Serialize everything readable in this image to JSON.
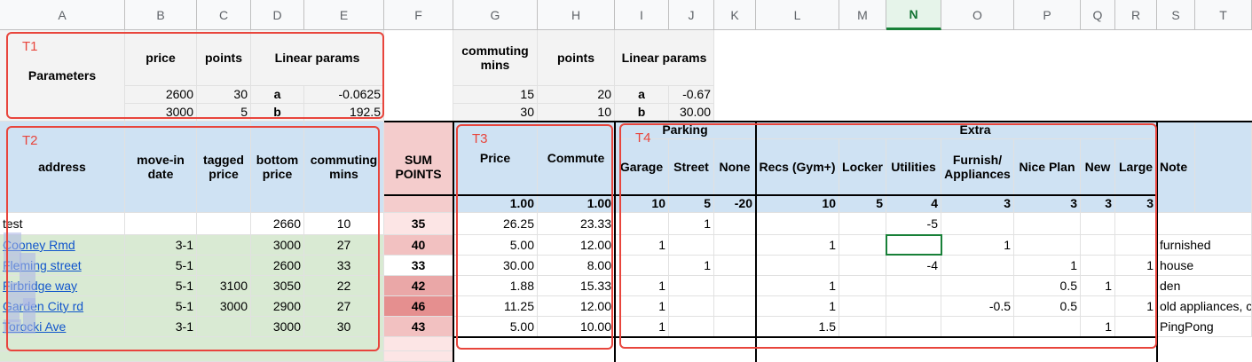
{
  "columns": [
    "A",
    "B",
    "C",
    "D",
    "E",
    "F",
    "G",
    "H",
    "I",
    "J",
    "K",
    "L",
    "M",
    "N",
    "O",
    "P",
    "Q",
    "R",
    "S",
    "T"
  ],
  "selected_column": "N",
  "tables": {
    "t1_label": "T1",
    "t2_label": "T2",
    "t3_label": "T3",
    "t4_label": "T4"
  },
  "params": {
    "title": "Parameters",
    "price_hdr": "price",
    "points_hdr": "points",
    "linear_hdr": "Linear params",
    "rows": [
      {
        "price": "2600",
        "points": "30",
        "key": "a",
        "val": "-0.0625"
      },
      {
        "price": "3000",
        "points": "5",
        "key": "b",
        "val": "192.5"
      }
    ],
    "commute_hdr": "commuting mins",
    "commute_points_hdr": "points",
    "commute_linear_hdr": "Linear params",
    "commute_rows": [
      {
        "mins": "15",
        "points": "20",
        "key": "a",
        "val": "-0.67"
      },
      {
        "mins": "30",
        "points": "10",
        "key": "b",
        "val": "30.00"
      }
    ]
  },
  "headers": {
    "address": "address",
    "movein": "move-in date",
    "tagged": "tagged price",
    "bottom": "bottom price",
    "commuting": "commuting mins",
    "sum": "SUM POINTS",
    "price": "Price",
    "commute": "Commute",
    "parking": "Parking",
    "extra": "Extra",
    "garage": "Garage",
    "street": "Street",
    "none": "None",
    "recs": "Recs (Gym+)",
    "locker": "Locker",
    "utilities": "Utilities",
    "furnish": "Furnish/ Appliances",
    "niceplan": "Nice Plan",
    "new": "New",
    "large": "Large",
    "note": "Note"
  },
  "weights": {
    "price": "1.00",
    "commute": "1.00",
    "garage": "10",
    "street": "5",
    "none": "-20",
    "recs": "10",
    "locker": "5",
    "utilities": "4",
    "furnish": "3",
    "niceplan": "3",
    "new": "3",
    "large": "3"
  },
  "rows": [
    {
      "address": "test",
      "movein": "",
      "tagged": "",
      "bottom": "2660",
      "commuting": "10",
      "sum": "35",
      "price": "26.25",
      "commute": "23.33",
      "garage": "",
      "street": "1",
      "none": "",
      "recs": "",
      "locker": "",
      "utilities": "-5",
      "furnish": "",
      "niceplan": "",
      "new": "",
      "large": "",
      "note": ""
    },
    {
      "address": "Cooney Rmd",
      "movein": "3-1",
      "tagged": "",
      "bottom": "3000",
      "commuting": "27",
      "sum": "40",
      "price": "5.00",
      "commute": "12.00",
      "garage": "1",
      "street": "",
      "none": "",
      "recs": "1",
      "locker": "",
      "utilities": "",
      "furnish": "1",
      "niceplan": "",
      "new": "",
      "large": "",
      "note": "furnished"
    },
    {
      "address": "Fleming street",
      "movein": "5-1",
      "tagged": "",
      "bottom": "2600",
      "commuting": "33",
      "sum": "33",
      "price": "30.00",
      "commute": "8.00",
      "garage": "",
      "street": "1",
      "none": "",
      "recs": "",
      "locker": "",
      "utilities": "-4",
      "furnish": "",
      "niceplan": "1",
      "new": "",
      "large": "1",
      "note": "house"
    },
    {
      "address": "Firbridge way",
      "movein": "5-1",
      "tagged": "3100",
      "bottom": "3050",
      "commuting": "22",
      "sum": "42",
      "price": "1.88",
      "commute": "15.33",
      "garage": "1",
      "street": "",
      "none": "",
      "recs": "1",
      "locker": "",
      "utilities": "",
      "furnish": "",
      "niceplan": "0.5",
      "new": "1",
      "large": "",
      "note": "den"
    },
    {
      "address": "Garden City rd",
      "movein": "5-1",
      "tagged": "3000",
      "bottom": "2900",
      "commuting": "27",
      "sum": "46",
      "price": "11.25",
      "commute": "12.00",
      "garage": "1",
      "street": "",
      "none": "",
      "recs": "1",
      "locker": "",
      "utilities": "",
      "furnish": "-0.5",
      "niceplan": "0.5",
      "new": "",
      "large": "1",
      "note": "old appliances, c"
    },
    {
      "address": "Torocki Ave",
      "movein": "3-1",
      "tagged": "",
      "bottom": "3000",
      "commuting": "30",
      "sum": "43",
      "price": "5.00",
      "commute": "10.00",
      "garage": "1",
      "street": "",
      "none": "",
      "recs": "1.5",
      "locker": "",
      "utilities": "",
      "furnish": "",
      "niceplan": "",
      "new": "1",
      "large": "",
      "note": "PingPong"
    }
  ],
  "colors": {
    "table_outline": "#e8453c",
    "header_blue": "#cfe2f3",
    "address_green": "#d9ead3",
    "sum_pink": "#f4cccc",
    "selected_col": "#188038"
  }
}
